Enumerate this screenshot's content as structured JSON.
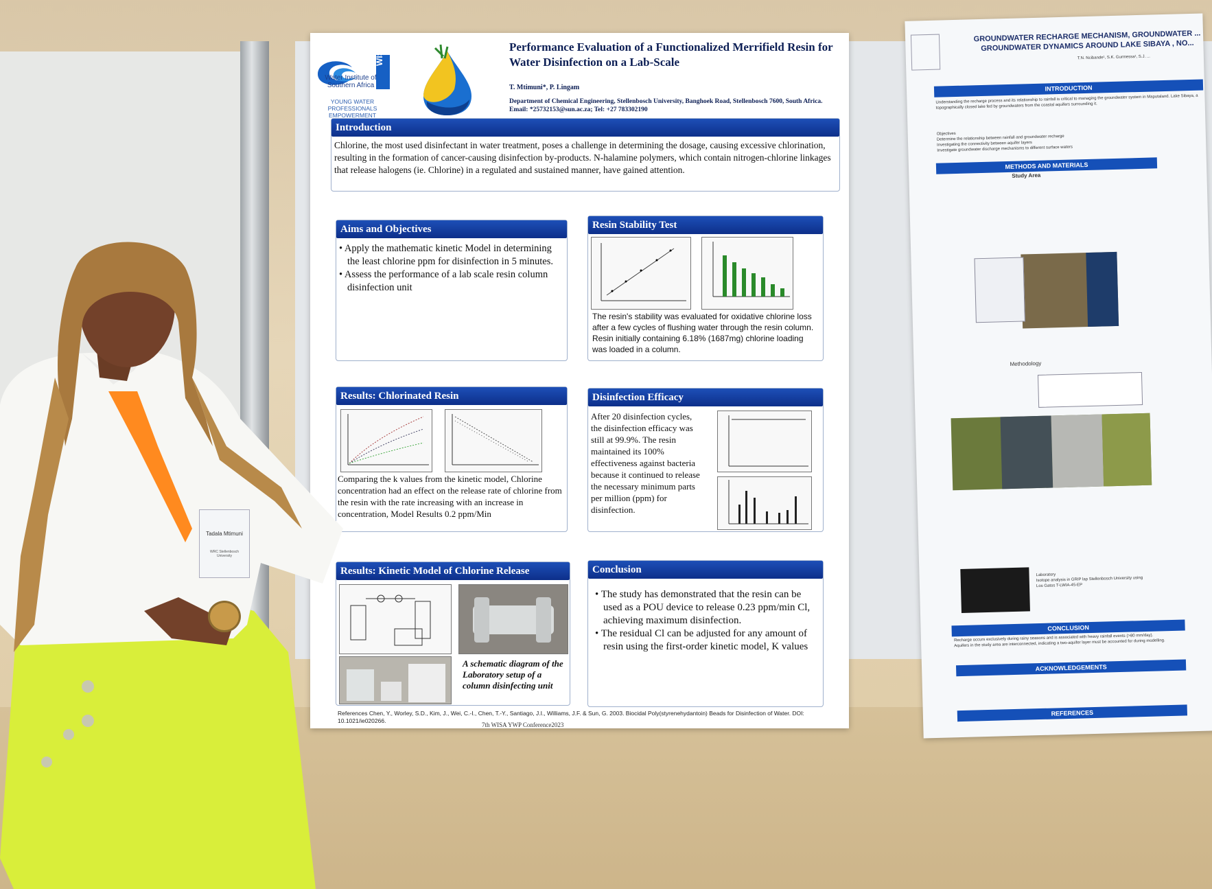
{
  "poster": {
    "logo_name": "Water Institute of Southern Africa",
    "logo_acronym": "WISA",
    "logo_sub": "YOUNG WATER PROFESSIONALS EMPOWERMENT PLATFORM",
    "title": "Performance Evaluation of a Functionalized Merrifield Resin for Water Disinfection on a Lab-Scale",
    "authors": "T. Mtimuni*, P. Lingam",
    "dept": "Department of Chemical Engineering, Stellenbosch University, Banghoek Road, Stellenbosch 7600, South Africa. Email: *25732153@sun.ac.za; Tel: +27 783302190",
    "introduction": {
      "heading": "Introduction",
      "text": "Chlorine, the most used disinfectant in water treatment, poses a challenge in determining the dosage, causing excessive chlorination, resulting in the formation of cancer-causing disinfection by-products. N-halamine polymers, which contain nitrogen-chlorine linkages that release halogens (ie. Chlorine) in a regulated and sustained manner, have gained attention."
    },
    "aims": {
      "heading": "Aims and Objectives",
      "items": [
        "Apply the mathematic kinetic Model in determining the least chlorine ppm for disinfection in 5 minutes.",
        "Assess the performance of a lab scale resin column disinfection unit"
      ]
    },
    "stability": {
      "heading": "Resin Stability Test",
      "text": "The resin's stability was evaluated for oxidative chlorine loss after a few cycles of flushing water through the resin column. Resin initially containing 6.18% (1687mg) chlorine loading was loaded in a column."
    },
    "chlorinated": {
      "heading": "Results: Chlorinated Resin",
      "text": "Comparing the k values from the kinetic model, Chlorine concentration had an effect on the release rate of chlorine from the resin with the rate increasing with an increase in concentration, Model Results 0.2 ppm/Min"
    },
    "efficacy": {
      "heading": "Disinfection Efficacy",
      "text": "After 20 disinfection cycles, the disinfection efficacy was still at 99.9%. The resin maintained its 100% effectiveness against bacteria because it continued to release the necessary minimum parts per million (ppm) for disinfection."
    },
    "kinetic": {
      "heading": "Results: Kinetic Model of Chlorine Release",
      "caption": "A schematic diagram of the Laboratory setup of a column disinfecting unit"
    },
    "conclusion": {
      "heading": "Conclusion",
      "items": [
        "The study has demonstrated that the resin can be used as a POU device to release 0.23 ppm/min Cl, achieving maximum disinfection.",
        "The residual Cl can be adjusted for any amount of resin using the first-order kinetic model, K values"
      ]
    },
    "references": "References Chen, Y., Worley, S.D., Kim, J., Wei, C.-I., Chen, T.-Y., Santiago, J.I., Williams, J.F. & Sun, G. 2003. Biocidal Poly(styrenehydantoin) Beads for Disinfection of Water. DOI: 10.1021/ie020266.",
    "conference": "7th WISA YWP Conference2023"
  },
  "poster2": {
    "title": "GROUNDWATER RECHARGE MECHANISM, GROUNDWATER ... GROUNDWATER DYNAMICS AROUND LAKE SIBAYA , NO...",
    "authors": "T.N. Ncibande¹, S.K. Gurmessa¹, S.J. ...",
    "sections": [
      "INTRODUCTION",
      "METHODS AND MATERIALS",
      "CONCLUSION",
      "ACKNOWLEDGEMENTS",
      "REFERENCES"
    ],
    "study_area": "Study Area",
    "methodology": "Methodology",
    "intro_text": "Understanding the recharge process and its relationship to rainfall is critical to managing the groundwater system in Maputaland. Lake Sibaya, a topographically closed lake fed by groundwaters from the coastal aquifers surrounding it.",
    "objectives": [
      "Objectives",
      "Determine the relationship between rainfall and groundwater recharge",
      "Investigating the connectivity between aquifer layers",
      "Investigate groundwater discharge mechanisms to different surface waters"
    ],
    "conclusion_text": [
      "Recharge occurs exclusively during rainy seasons and is associated with heavy rainfall events (>80 mm/day).",
      "Aquifers in the study area are interconnected, indicating a two-aquifer layer must be accounted for during modelling."
    ],
    "lab_text": [
      "Laboratory",
      "Isotope analysis in GRIP lap Stellenbosch University using Los Gatos T-LWIA-45-EP"
    ]
  },
  "badge": {
    "name": "Tadala Mtimuni",
    "org": "WRC Stellenbosch University"
  },
  "colors": {
    "header_blue": "#1550b8",
    "title_navy": "#0d1f55",
    "lanyard": "#ff8a1f",
    "pants": "#d9ee3a"
  }
}
